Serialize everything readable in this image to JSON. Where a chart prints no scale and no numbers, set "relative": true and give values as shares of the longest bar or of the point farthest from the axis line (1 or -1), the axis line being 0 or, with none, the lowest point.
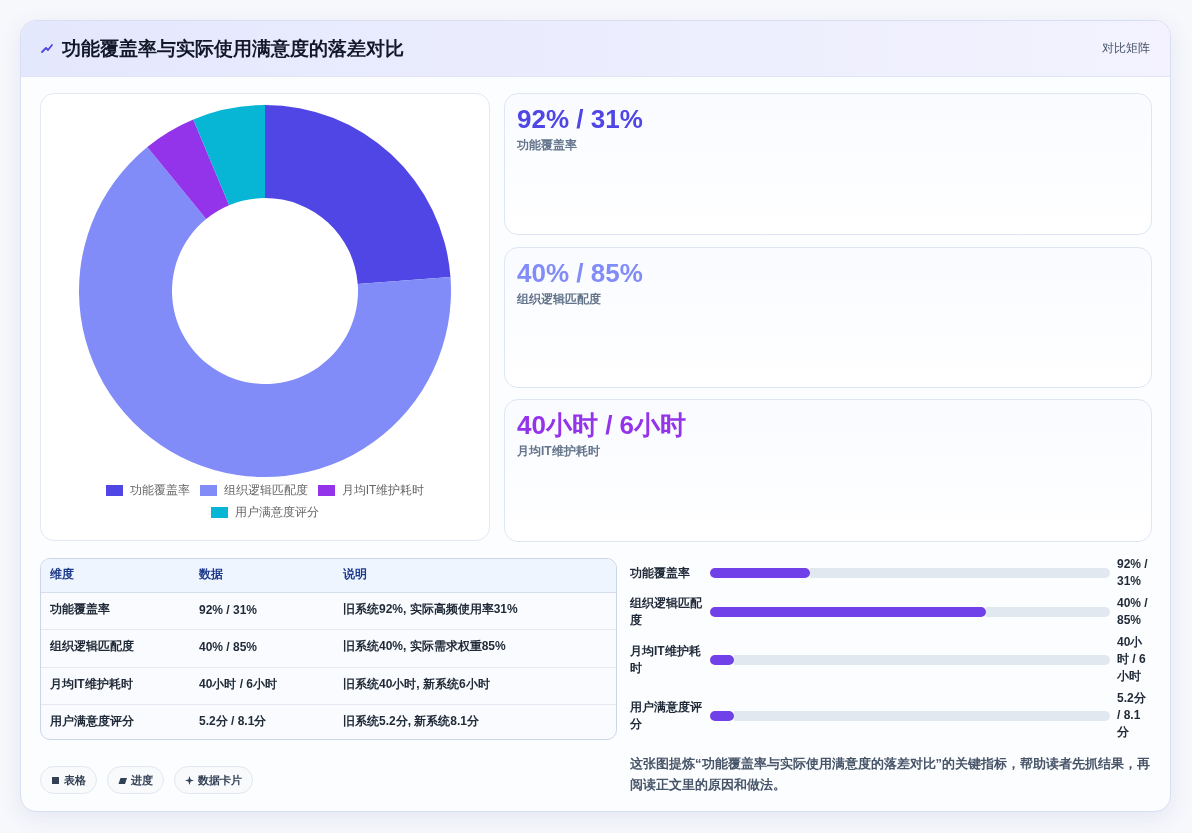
{
  "chart_data": [
    {
      "type": "donut",
      "title": "功能覆盖率与实际使用满意度的落差对比",
      "annotations": [
        "对比矩阵"
      ],
      "categories": [
        "功能覆盖率",
        "组织逻辑匹配度",
        "月均IT维护耗时",
        "用户满意度评分"
      ],
      "values": [
        23.8,
        65.3,
        4.6,
        6.3
      ],
      "colors": [
        "#4f46e5",
        "#818cf8",
        "#9333ea",
        "#06b6d4"
      ],
      "legend": "bottom"
    },
    {
      "type": "other",
      "title": "92% / 31%",
      "subtitle": "功能覆盖率",
      "color": "#4f46e5"
    },
    {
      "type": "other",
      "title": "40% / 85%",
      "subtitle": "组织逻辑匹配度",
      "color": "#818cf8"
    },
    {
      "type": "other",
      "title": "40小时 / 6小时",
      "subtitle": "月均IT维护耗时",
      "color": "#9333ea"
    },
    {
      "type": "other",
      "categories": [
        "维度",
        "数据",
        "说明"
      ],
      "annotations": [
        "功能覆盖率",
        "92% / 31%",
        "旧系统92%, 实际高频使用率31%",
        "组织逻辑匹配度",
        "40% / 85%",
        "旧系统40%, 实际需求权重85%",
        "月均IT维护耗时",
        "40小时 / 6小时",
        "旧系统40小时, 新系统6小时",
        "用户满意度评分",
        "5.2分 / 8.1分",
        "旧系统5.2分, 新系统8.1分"
      ]
    },
    {
      "type": "other",
      "annotations": [
        "表格",
        "进度",
        "数据卡片"
      ]
    },
    {
      "type": "bar",
      "orientation": "horizontal",
      "stacked": true,
      "relative": true,
      "categories": [
        "功能覆盖率",
        "组织逻辑匹配度",
        "月均IT维护耗时",
        "用户满意度评分"
      ],
      "y2_categories": [
        "92% / 31%",
        "40% / 85%",
        "40小时 / 6小时",
        "5.2分 / 8.1分"
      ],
      "series": [
        {
          "color": "#7040e8",
          "values": [
            0.25,
            0.69,
            0.06,
            0.06
          ]
        },
        {
          "color": "#e2e8f0",
          "values": [
            0.75,
            0.31,
            0.94,
            0.94
          ]
        }
      ],
      "annotations": [
        "这张图提炼“功能覆盖率与实际使用满意度的落差对比”的关键指标，帮助读者先抓结果，再阅读正文里的原因和做法。"
      ]
    }
  ]
}
